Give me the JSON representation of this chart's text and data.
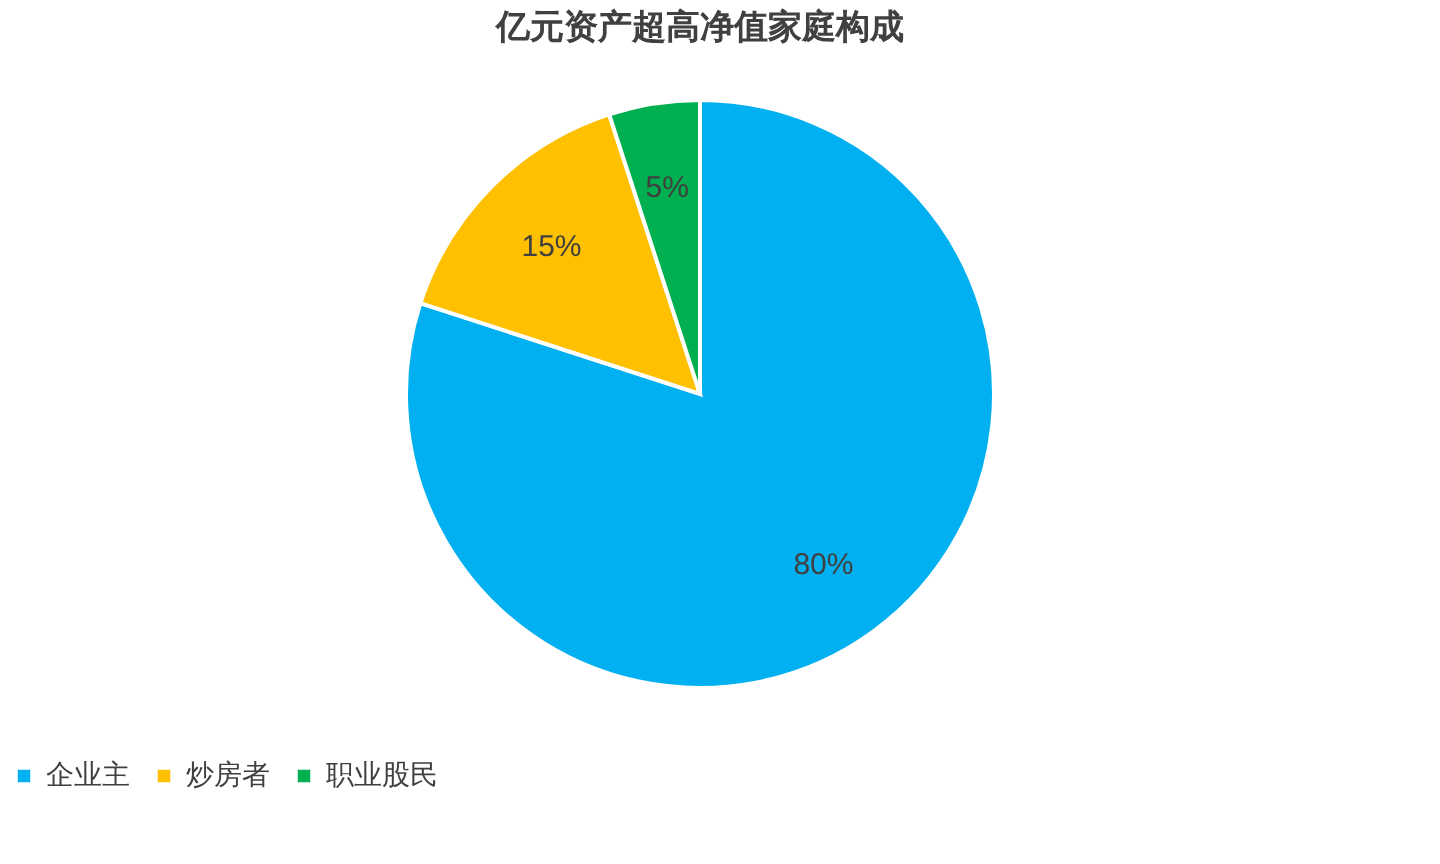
{
  "chart_data": {
    "type": "pie",
    "title": "亿元资产超高净值家庭构成",
    "categories": [
      "企业主",
      "炒房者",
      "职业股民"
    ],
    "values": [
      80,
      15,
      5
    ],
    "colors": [
      "#00b0f0",
      "#ffc000",
      "#00b050"
    ],
    "value_labels": [
      "80%",
      "15%",
      "5%"
    ],
    "legend": "bottom"
  }
}
